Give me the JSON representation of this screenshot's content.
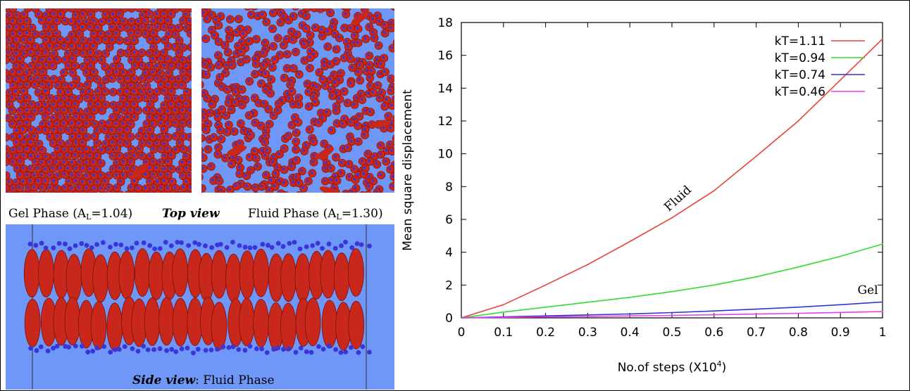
{
  "images": {
    "gel_caption_main": "Gel Phase (A",
    "gel_caption_sub": "L",
    "gel_caption_tail": "=1.04)",
    "top_view_label": "Top view",
    "fluid_caption_main": "Fluid Phase (A",
    "fluid_caption_sub": "L",
    "fluid_caption_tail": "=1.30)",
    "side_view_label": "Side view",
    "side_view_rest": ": Fluid Phase",
    "colors": {
      "background": "#6f97f7",
      "lipid": "#c8281c",
      "head": "#3a35d8"
    }
  },
  "chart_data": {
    "type": "line",
    "title": "",
    "xlabel": "No.of steps (X10",
    "xlabel_sup": "4",
    "xlabel_tail": ")",
    "ylabel": "Mean square displacement",
    "xlim": [
      0,
      1
    ],
    "ylim": [
      0,
      18
    ],
    "xticks": [
      "0",
      "0.1",
      "0.2",
      "0.3",
      "0.4",
      "0.5",
      "0.6",
      "0.7",
      "0.8",
      "0.9",
      "1"
    ],
    "yticks": [
      "0",
      "2",
      "4",
      "6",
      "8",
      "10",
      "12",
      "14",
      "16",
      "18"
    ],
    "legend_position": "top-right",
    "x": [
      0,
      0.1,
      0.2,
      0.3,
      0.4,
      0.5,
      0.6,
      0.7,
      0.8,
      0.9,
      1.0
    ],
    "series": [
      {
        "name": "kT=1.11",
        "color": "#e8413b",
        "values": [
          0,
          0.8,
          2.0,
          3.25,
          4.65,
          6.1,
          7.75,
          9.85,
          12.0,
          14.5,
          17.0
        ]
      },
      {
        "name": "kT=0.94",
        "color": "#2fdc2f",
        "values": [
          0,
          0.35,
          0.65,
          0.95,
          1.25,
          1.6,
          2.0,
          2.5,
          3.1,
          3.75,
          4.5
        ]
      },
      {
        "name": "kT=0.74",
        "color": "#3434d0",
        "values": [
          0,
          0.06,
          0.12,
          0.18,
          0.24,
          0.32,
          0.42,
          0.53,
          0.65,
          0.8,
          0.97
        ]
      },
      {
        "name": "kT=0.46",
        "color": "#e83ee8",
        "values": [
          0,
          0.03,
          0.06,
          0.09,
          0.12,
          0.15,
          0.19,
          0.23,
          0.28,
          0.33,
          0.38
        ]
      }
    ],
    "annotations": [
      {
        "text": "Fluid",
        "x": 0.52,
        "y": 7.1
      },
      {
        "text": "Gel",
        "x": 0.965,
        "y": 1.45
      }
    ]
  }
}
